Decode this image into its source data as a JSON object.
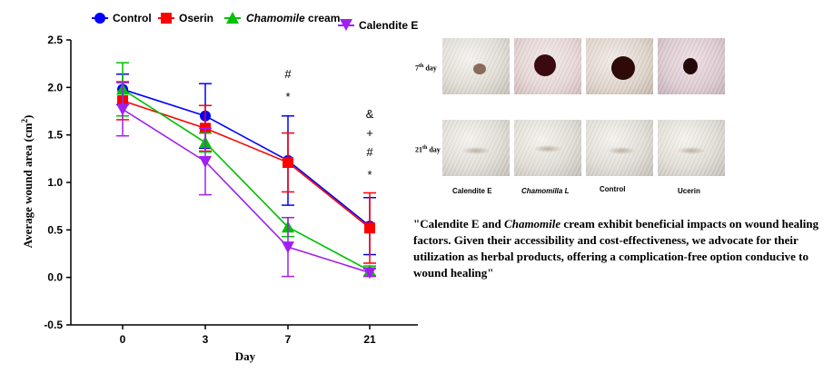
{
  "chart_data": {
    "type": "line",
    "xlabel": "Day",
    "ylabel": "Average wound area (cm²)",
    "categories": [
      "0",
      "3",
      "7",
      "21"
    ],
    "ylim": [
      -0.5,
      2.5
    ],
    "yticks": [
      "-0.5",
      "0.0",
      "0.5",
      "1.0",
      "1.5",
      "2.0",
      "2.5"
    ],
    "legend_position": "top",
    "series": [
      {
        "name": "Control",
        "color": "#0000ff",
        "marker": "circle",
        "values": [
          1.98,
          1.7,
          1.23,
          0.54
        ],
        "errors": [
          0.16,
          0.34,
          0.47,
          0.3
        ]
      },
      {
        "name": "Oserin",
        "color": "#ff0000",
        "marker": "square",
        "values": [
          1.86,
          1.57,
          1.21,
          0.52
        ],
        "errors": [
          0.2,
          0.24,
          0.31,
          0.37
        ]
      },
      {
        "name": "Chamomile cream",
        "color": "#00c000",
        "marker": "triangle-up",
        "values": [
          1.98,
          1.42,
          0.53,
          0.07
        ],
        "errors": [
          0.28,
          0.1,
          0.1,
          0.05
        ]
      },
      {
        "name": "Calendite E",
        "color": "#a020f0",
        "marker": "triangle-down",
        "values": [
          1.77,
          1.22,
          0.32,
          0.05
        ],
        "errors": [
          0.28,
          0.35,
          0.31,
          0.04
        ]
      }
    ],
    "annotations": [
      {
        "category": "7",
        "lines": [
          "#",
          "*"
        ]
      },
      {
        "category": "21",
        "lines": [
          "&",
          "+",
          "#",
          "*"
        ]
      }
    ]
  },
  "legend": {
    "control": "Control",
    "oserin": "Oserin",
    "chamomile_italic": "Chamomile",
    "chamomile_rest": " cream",
    "calendite": "Calendite E"
  },
  "photos": {
    "row1_label": "7",
    "row1_sup": "th",
    "row1_rest": " day",
    "row2_label": "21",
    "row2_sup": "th",
    "row2_rest": " day",
    "groups": [
      "Calendite E",
      "Chamomilla L",
      "Control",
      "Ucerin"
    ]
  },
  "quote": {
    "part1": "\"Calendite E and ",
    "italic": "Chamomile",
    "part2": " cream exhibit beneficial impacts on wound healing factors. Given their accessibility and cost-effectiveness, we advocate for their utilization as herbal products, offering a complication-free option conducive to wound healing\""
  }
}
